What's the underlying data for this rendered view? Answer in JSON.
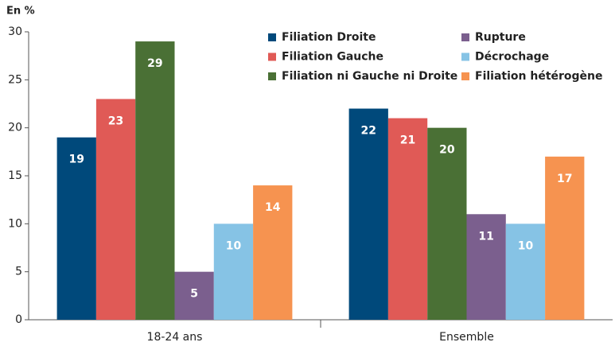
{
  "chart_data": {
    "type": "bar",
    "y_label": "En %",
    "categories": [
      "18-24 ans",
      "Ensemble"
    ],
    "series": [
      {
        "name": "Filiation Droite",
        "color": "#00497b",
        "values": [
          19,
          22
        ]
      },
      {
        "name": "Filiation Gauche",
        "color": "#e05a56",
        "values": [
          23,
          21
        ]
      },
      {
        "name": "Filiation ni Gauche ni Droite",
        "color": "#4a7035",
        "values": [
          29,
          20
        ]
      },
      {
        "name": "Rupture",
        "color": "#7b5f8e",
        "values": [
          5,
          11
        ]
      },
      {
        "name": "Décrochage",
        "color": "#86c3e5",
        "values": [
          10,
          10
        ]
      },
      {
        "name": "Filiation hétérogène",
        "color": "#f69350",
        "values": [
          14,
          17
        ]
      }
    ],
    "ylim": [
      0,
      30
    ],
    "yticks": [
      0,
      5,
      10,
      15,
      20,
      25,
      30
    ],
    "grid": false,
    "legend": "top-right"
  }
}
